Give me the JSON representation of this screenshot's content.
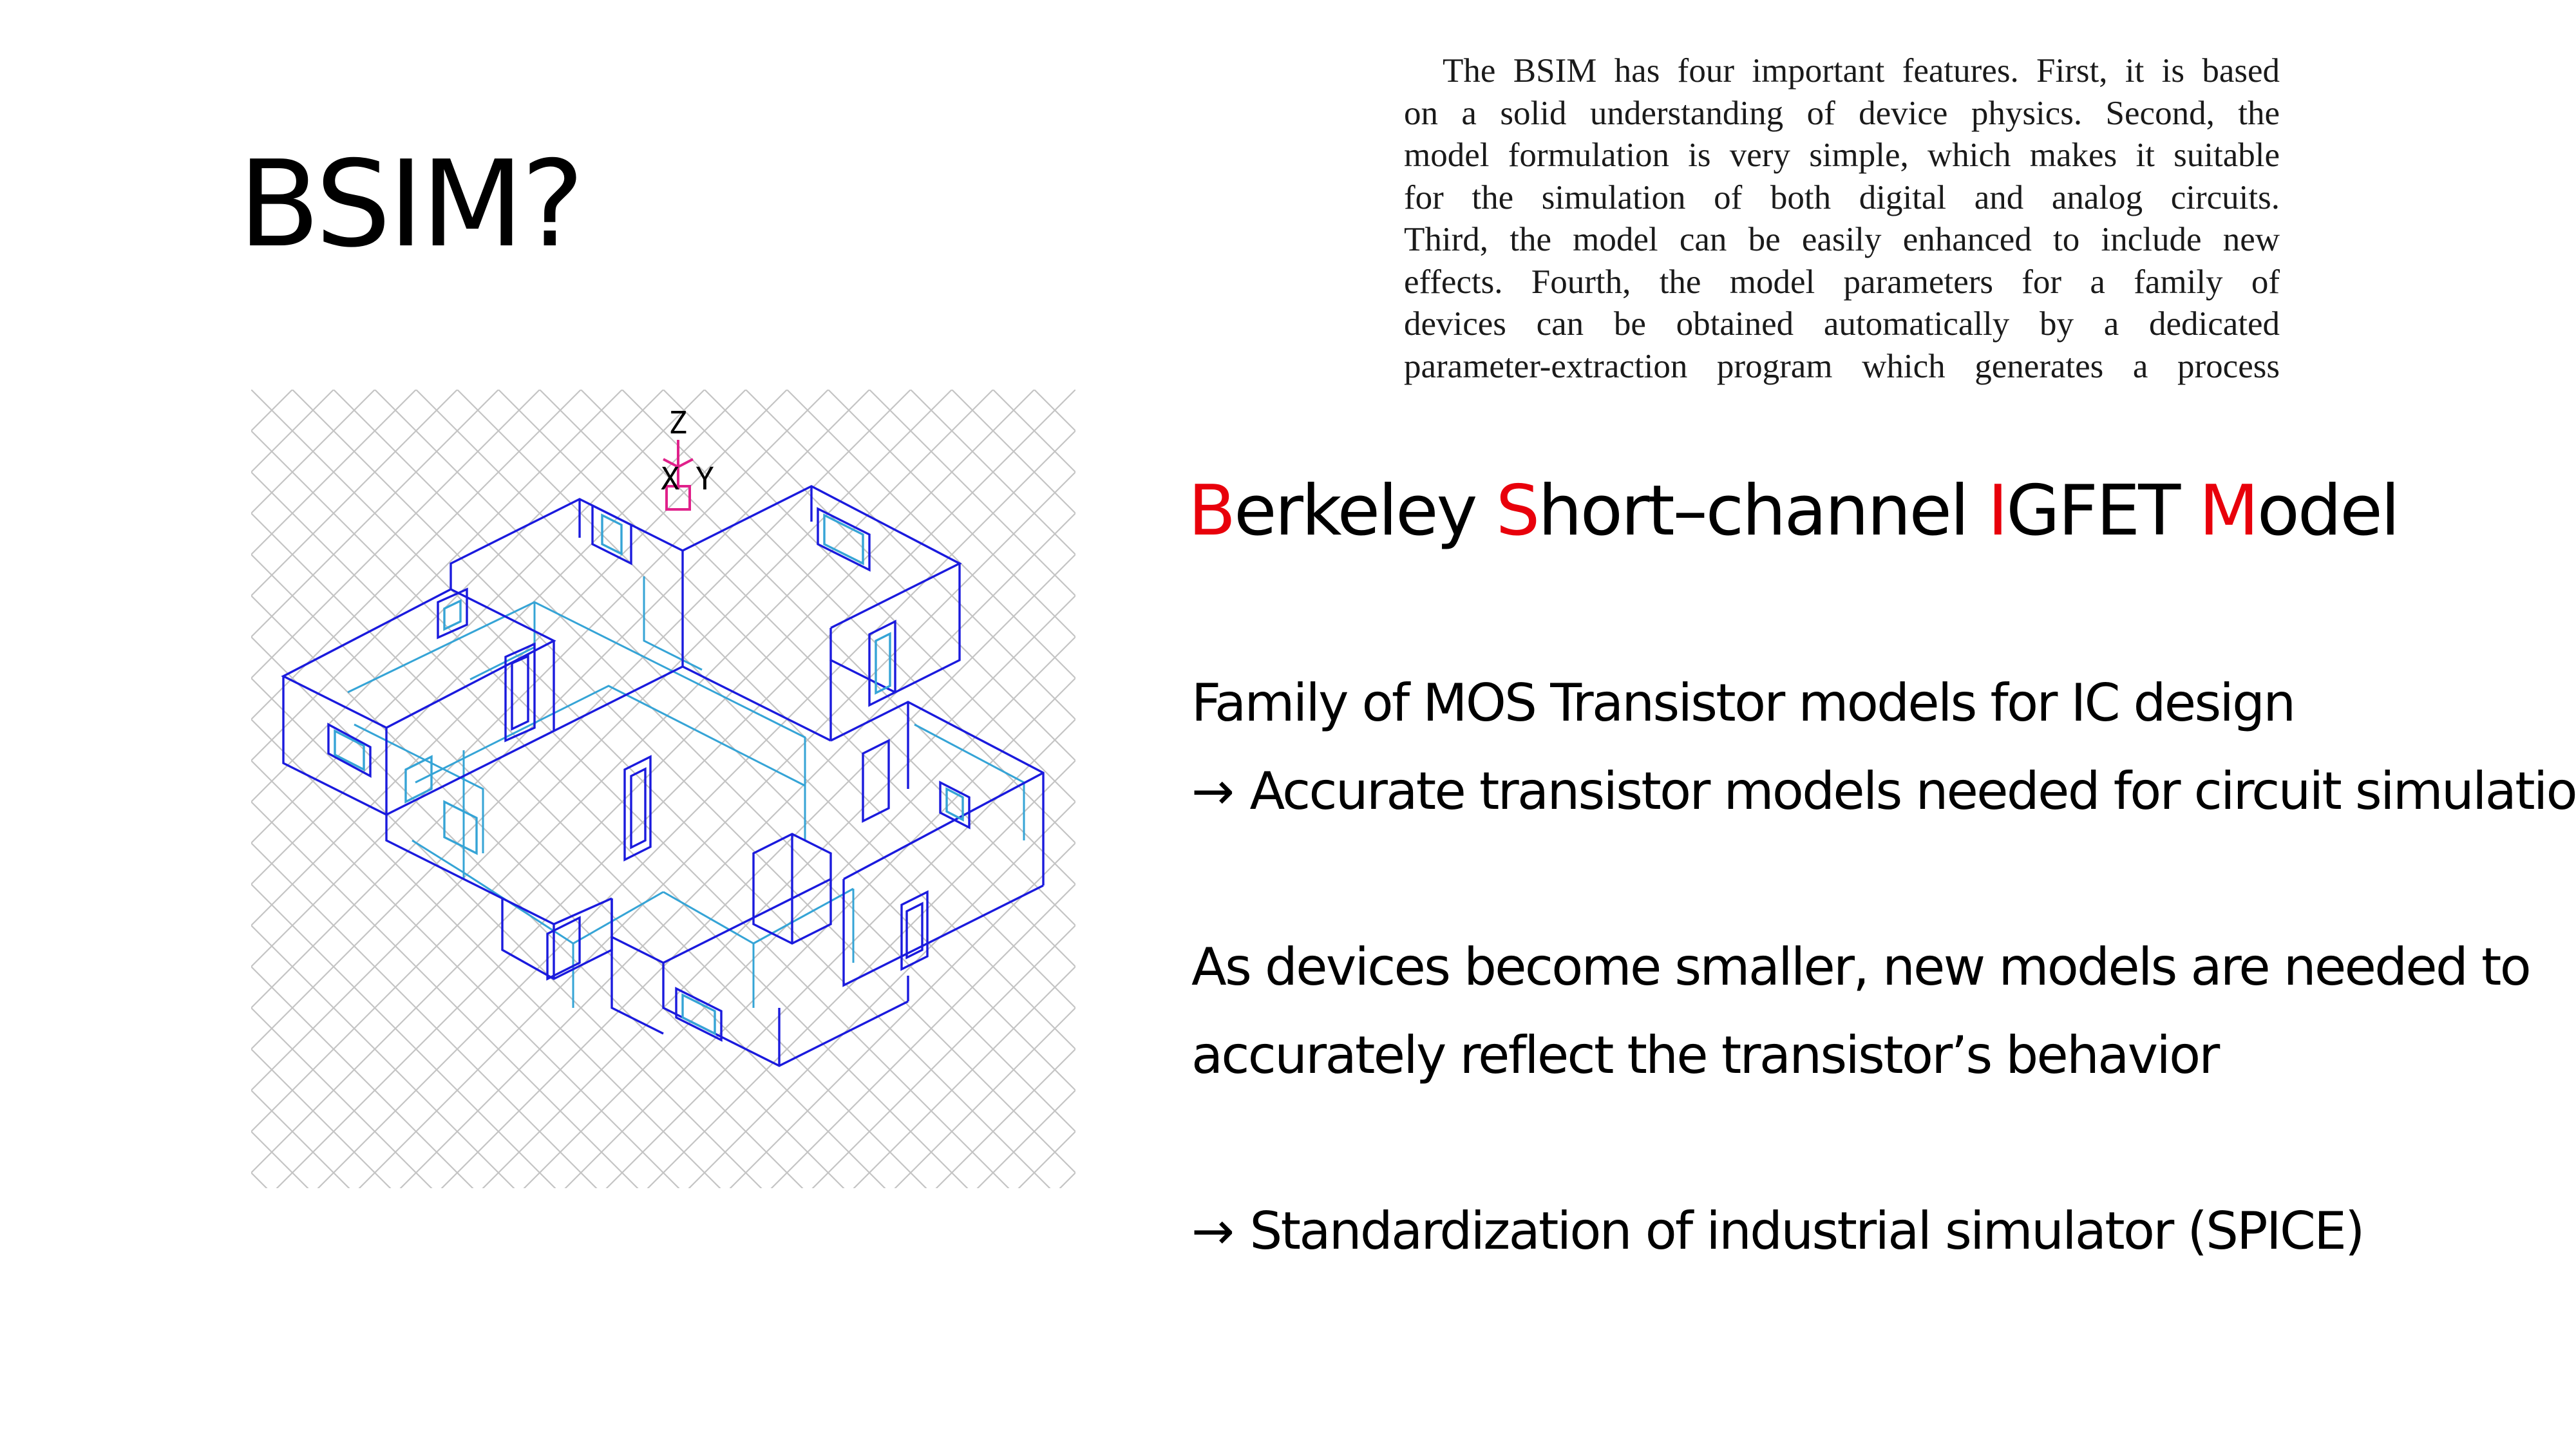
{
  "slide": {
    "title": "BSIM?"
  },
  "paper_excerpt": {
    "lines": [
      "The BSIM has four important features. First, it is based",
      "on a solid understanding of device physics. Second, the",
      "model formulation is very simple, which makes it suitable",
      "for the simulation of both digital and analog circuits.",
      "Third, the model can be easily enhanced to include new",
      "effects. Fourth, the model parameters for a family of",
      "devices can be obtained automatically by a dedicated",
      "parameter-extraction program which generates a process"
    ]
  },
  "figure": {
    "axis_labels": {
      "z": "Z",
      "x": "X",
      "y": "Y"
    },
    "colors": {
      "grid": "#c4c4c4",
      "frame_dark": "#1a1add",
      "frame_light": "#35a4d6",
      "axis_marker": "#e0208a"
    }
  },
  "acronym": {
    "parts": [
      {
        "initial": "B",
        "rest": "erkeley "
      },
      {
        "initial": "S",
        "rest": "hort–channel "
      },
      {
        "initial": "I",
        "rest": "GFET "
      },
      {
        "initial": "M",
        "rest": "odel"
      }
    ],
    "highlight_color": "#e8000b"
  },
  "points": {
    "family": "Family of MOS Transistor models for IC design",
    "accurate_arrow": "→",
    "accurate": "Accurate transistor models needed for circuit simulation",
    "smaller_line1": "As devices become smaller, new models are needed to",
    "smaller_line2": "accurately reflect the transistor’s behavior",
    "standard_arrow": "→",
    "standard": "Standardization of industrial simulator (SPICE)"
  }
}
